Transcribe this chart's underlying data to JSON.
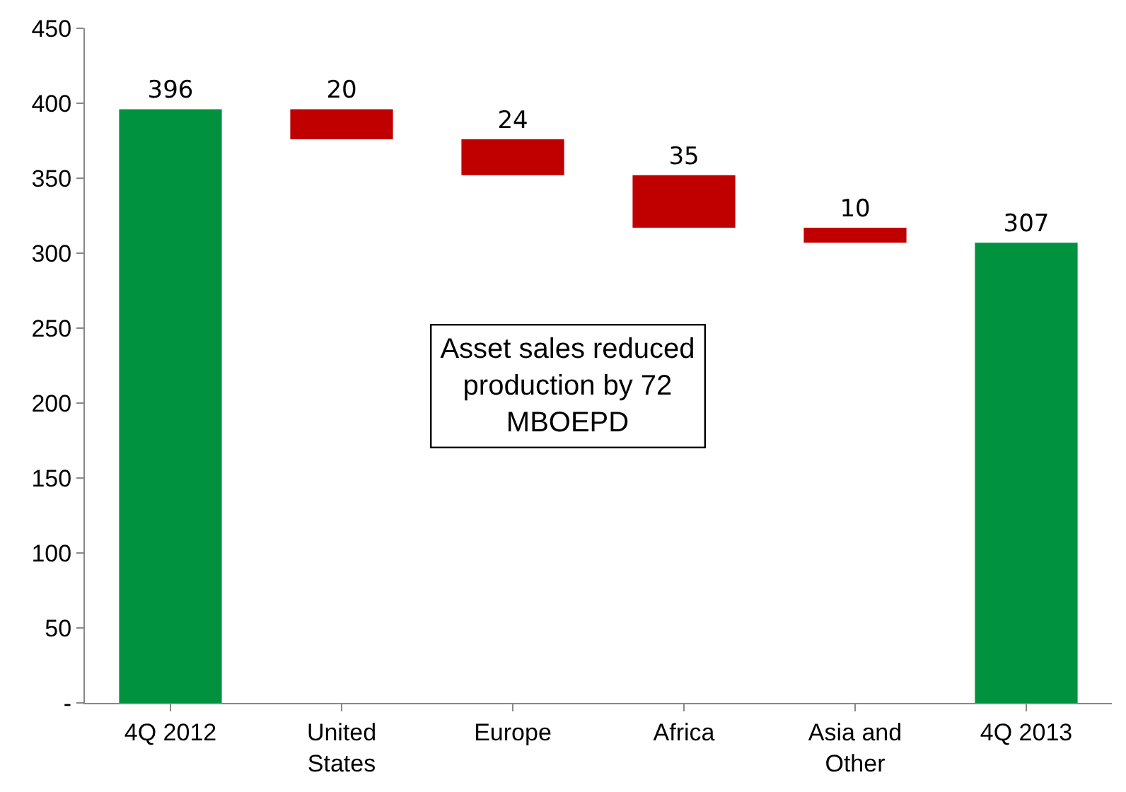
{
  "chart_data": {
    "type": "bar",
    "categories": [
      "4Q 2012",
      "United States",
      "Europe",
      "Africa",
      "Asia and Other",
      "4Q 2013"
    ],
    "values": [
      396,
      20,
      24,
      35,
      10,
      307
    ],
    "base": [
      0,
      376,
      352,
      317,
      307,
      0
    ],
    "colors": [
      "#00923f",
      "#c00000",
      "#c00000",
      "#c00000",
      "#c00000",
      "#00923f"
    ],
    "data_labels": true,
    "ylim": [
      0,
      450
    ],
    "yticks": [
      {
        "value": 0,
        "label": "-"
      },
      50,
      100,
      150,
      200,
      250,
      300,
      350,
      400,
      450
    ],
    "grid": false,
    "legend": false,
    "annotations": [
      "Asset sales reduced production by 72 MBOEPD"
    ]
  }
}
